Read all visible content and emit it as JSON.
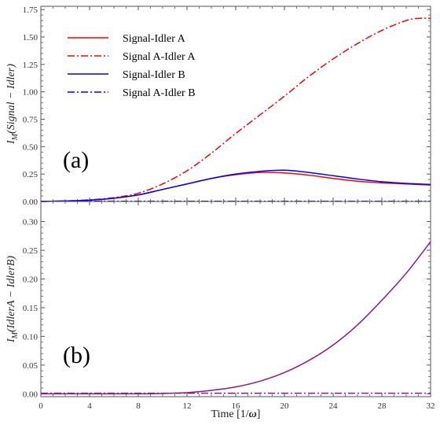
{
  "chart_data": [
    {
      "type": "line",
      "panel_label": "(a)",
      "ylabel": "I_M(Signal − Idler)",
      "ylabel_main": "I",
      "ylabel_sub": "M",
      "ylabel_rest": "(Signal − Idler)",
      "xlabel": "",
      "xlim": [
        0,
        32
      ],
      "ylim": [
        0,
        1.78
      ],
      "xticks": [
        0,
        4,
        8,
        12,
        16,
        20,
        24,
        28,
        32
      ],
      "yticks": [
        "0.00",
        "0.25",
        "0.50",
        "0.75",
        "1.00",
        "1.25",
        "1.50",
        "1.75"
      ],
      "legend_position": "top-left",
      "series": [
        {
          "name": "Signal-Idler A",
          "color": "#ff0000",
          "dash": "solid",
          "x": [
            0,
            2,
            4,
            6,
            8,
            10,
            12,
            14,
            16,
            18,
            20,
            22,
            24,
            26,
            28,
            30,
            32
          ],
          "y": [
            0,
            0.005,
            0.012,
            0.03,
            0.06,
            0.11,
            0.16,
            0.21,
            0.245,
            0.265,
            0.26,
            0.24,
            0.21,
            0.185,
            0.17,
            0.16,
            0.15
          ]
        },
        {
          "name": "Signal A-Idler A",
          "color": "#ff0000",
          "dash": "dashdot",
          "x": [
            0,
            2,
            4,
            6,
            8,
            10,
            12,
            14,
            16,
            18,
            20,
            22,
            24,
            26,
            28,
            30,
            31,
            32
          ],
          "y": [
            0,
            0.005,
            0.015,
            0.035,
            0.075,
            0.16,
            0.28,
            0.44,
            0.62,
            0.79,
            0.96,
            1.14,
            1.3,
            1.44,
            1.56,
            1.65,
            1.67,
            1.67
          ]
        },
        {
          "name": "Signal-Idler B",
          "color": "#0000ff",
          "dash": "solid",
          "x": [
            0,
            2,
            4,
            6,
            8,
            10,
            12,
            14,
            16,
            18,
            20,
            22,
            24,
            26,
            28,
            30,
            32
          ],
          "y": [
            0,
            0.005,
            0.012,
            0.03,
            0.06,
            0.11,
            0.16,
            0.21,
            0.25,
            0.275,
            0.285,
            0.265,
            0.235,
            0.205,
            0.18,
            0.165,
            0.155
          ]
        },
        {
          "name": "Signal A-Idler B",
          "color": "#0000ff",
          "dash": "dashdot",
          "x": [
            0,
            8,
            16,
            24,
            32
          ],
          "y": [
            0.002,
            0.002,
            0.002,
            0.002,
            0.002
          ]
        }
      ]
    },
    {
      "type": "line",
      "panel_label": "(b)",
      "ylabel": "I_M(IdlerA − IdlerB)",
      "ylabel_main": "I",
      "ylabel_sub": "M",
      "ylabel_rest": "(IdlerA − IdlerB)",
      "xlabel": "Time [1/ω]",
      "xlabel_text": "Time [1/",
      "xlabel_symbol": "ω",
      "xlabel_end": "]",
      "xlim": [
        0,
        32
      ],
      "ylim": [
        -0.005,
        0.335
      ],
      "xticks": [
        0,
        4,
        8,
        12,
        16,
        20,
        24,
        28,
        32
      ],
      "yticks": [
        "0.00",
        "0.05",
        "0.10",
        "0.15",
        "0.20",
        "0.25",
        "0.30"
      ],
      "series": [
        {
          "color": "#8b1a8b",
          "dash": "solid",
          "x": [
            0,
            4,
            8,
            10,
            12,
            14,
            16,
            18,
            20,
            22,
            24,
            26,
            28,
            30,
            32
          ],
          "y": [
            0,
            0,
            0,
            0.0005,
            0.002,
            0.006,
            0.012,
            0.022,
            0.037,
            0.058,
            0.085,
            0.12,
            0.163,
            0.21,
            0.265
          ]
        },
        {
          "color": "#8b1a8b",
          "dash": "dashdot",
          "x": [
            0,
            8,
            16,
            24,
            32
          ],
          "y": [
            0.001,
            0.001,
            0.001,
            0.001,
            0.001
          ]
        }
      ]
    }
  ]
}
